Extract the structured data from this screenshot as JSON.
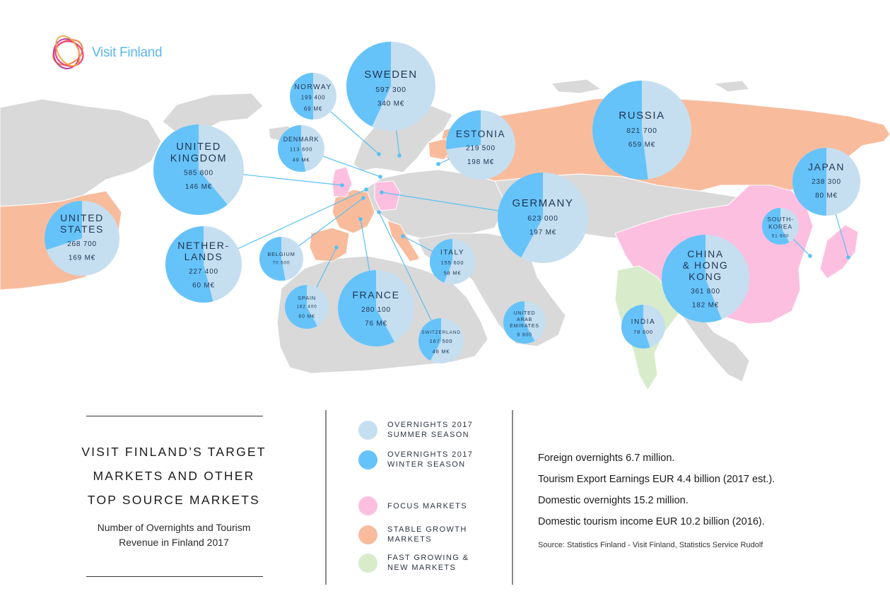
{
  "brand": {
    "name": "Visit Finland"
  },
  "colors": {
    "summer": "#c5dff1",
    "winter": "#66c3fa",
    "focus": "#fdbfe0",
    "stable": "#f8bc9d",
    "fast": "#d8eccb",
    "land": "#d9d9d9"
  },
  "title": {
    "lines": [
      "VISIT FINLAND’S TARGET",
      "MARKETS AND OTHER",
      "TOP SOURCE MARKETS"
    ],
    "subtitle": [
      "Number of Overnights and Tourism",
      "Revenue in Finland 2017"
    ]
  },
  "legend": [
    {
      "key": "summer",
      "lines": [
        "OVERNIGHTS 2017",
        "SUMMER SEASON"
      ]
    },
    {
      "key": "winter",
      "lines": [
        "OVERNIGHTS 2017",
        "WINTER SEASON"
      ]
    },
    {
      "key": "focus",
      "lines": [
        "FOCUS MARKETS"
      ]
    },
    {
      "key": "stable",
      "lines": [
        "STABLE GROWTH",
        "MARKETS"
      ]
    },
    {
      "key": "fast",
      "lines": [
        "FAST GROWING &",
        "NEW MARKETS"
      ]
    }
  ],
  "stats": [
    "Foreign overnights 6.7 million.",
    "Tourism Export Earnings EUR 4.4 billion (2017 est.).",
    "Domestic overnights 15.2 million.",
    "Domestic tourism income EUR 10.2 billion (2016)."
  ],
  "source": "Source: Statistics Finland - Visit Finland, Statistics Service Rudolf",
  "markets": [
    {
      "id": "russia",
      "name": [
        "RUSSIA"
      ],
      "overnights": "821 700",
      "revenue": "659 M€",
      "winter_share": 0.52
    },
    {
      "id": "sweden",
      "name": [
        "SWEDEN"
      ],
      "overnights": "597 300",
      "revenue": "340 M€",
      "winter_share": 0.43
    },
    {
      "id": "uk",
      "name": [
        "UNITED",
        "KINGDOM"
      ],
      "overnights": "585 800",
      "revenue": "146 M€",
      "winter_share": 0.61
    },
    {
      "id": "germany",
      "name": [
        "GERMANY"
      ],
      "overnights": "623 000",
      "revenue": "197 M€",
      "winter_share": 0.42
    },
    {
      "id": "china",
      "name": [
        "CHINA",
        "& HONG",
        "KONG"
      ],
      "overnights": "361 800",
      "revenue": "182 M€",
      "winter_share": 0.56
    },
    {
      "id": "usa",
      "name": [
        "UNITED",
        "STATES"
      ],
      "overnights": "268 700",
      "revenue": "169 M€",
      "winter_share": 0.3
    },
    {
      "id": "france",
      "name": [
        "FRANCE"
      ],
      "overnights": "280 100",
      "revenue": "76 M€",
      "winter_share": 0.58
    },
    {
      "id": "japan",
      "name": [
        "JAPAN"
      ],
      "overnights": "238 300",
      "revenue": "80 M€",
      "winter_share": 0.5
    },
    {
      "id": "netherlands",
      "name": [
        "NETHER-",
        "LANDS"
      ],
      "overnights": "227 400",
      "revenue": "60 M€",
      "winter_share": 0.54
    },
    {
      "id": "estonia",
      "name": [
        "ESTONIA"
      ],
      "overnights": "219 500",
      "revenue": "198 M€",
      "winter_share": 0.27
    },
    {
      "id": "norway",
      "name": [
        "NORWAY"
      ],
      "overnights": "199 400",
      "revenue": "69 M€",
      "winter_share": 0.5
    },
    {
      "id": "switzerland",
      "name": [
        "SWITZERLAND"
      ],
      "overnights": "167 500",
      "revenue": "46 M€",
      "winter_share": 0.42
    },
    {
      "id": "spain",
      "name": [
        "SPAIN"
      ],
      "overnights": "162 400",
      "revenue": "60 M€",
      "winter_share": 0.58
    },
    {
      "id": "italy",
      "name": [
        "ITALY"
      ],
      "overnights": "155 600",
      "revenue": "58 M€",
      "winter_share": 0.44
    },
    {
      "id": "denmark",
      "name": [
        "DENMARK"
      ],
      "overnights": "113 600",
      "revenue": "49 M€",
      "winter_share": 0.53
    },
    {
      "id": "india",
      "name": [
        "INDIA"
      ],
      "overnights": "78 600",
      "revenue": "",
      "winter_share": 0.55
    },
    {
      "id": "belgium",
      "name": [
        "BELGIUM"
      ],
      "overnights": "70 500",
      "revenue": "",
      "winter_share": 0.53
    },
    {
      "id": "southkorea",
      "name": [
        "SOUTH-",
        "KOREA"
      ],
      "overnights": "51 600",
      "revenue": "",
      "winter_share": 0.58
    },
    {
      "id": "uae",
      "name": [
        "UNITED",
        "ARAB",
        "EMIRATES"
      ],
      "overnights": "9 900",
      "revenue": "",
      "winter_share": 0.58
    }
  ]
}
